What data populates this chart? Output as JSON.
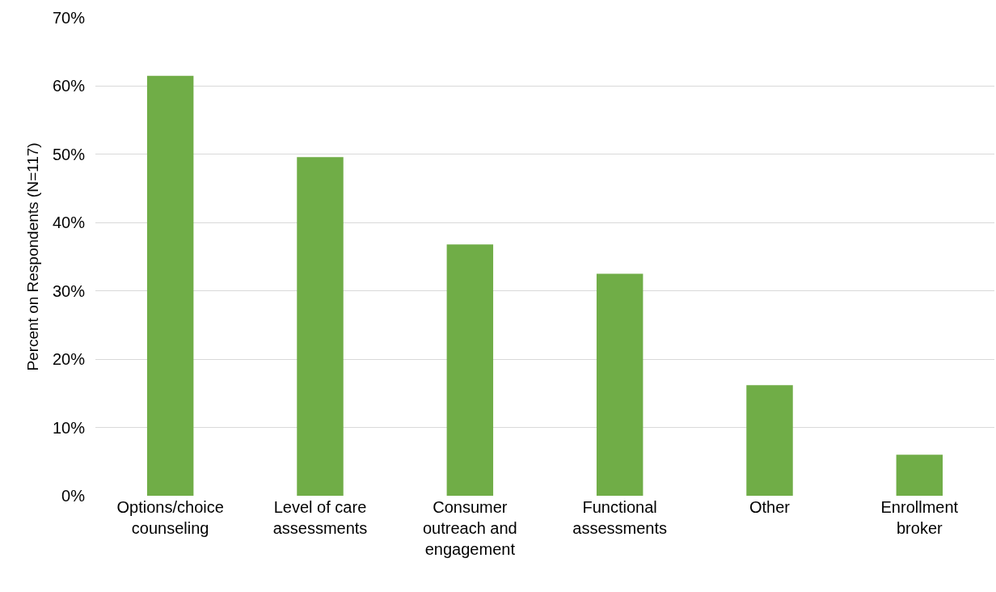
{
  "chart_data": {
    "type": "bar",
    "ylabel": "Percent on Respondents (N=117)",
    "categories": [
      "Options/choice counseling",
      "Level of care assessments",
      "Consumer outreach and engagement",
      "Functional assessments",
      "Other",
      "Enrollment broker"
    ],
    "values": [
      61.5,
      49.6,
      36.8,
      32.5,
      16.2,
      6.0
    ],
    "color": "#70ad47",
    "ylim": [
      0,
      70
    ],
    "yticks": [
      {
        "value": 0,
        "label": "0%"
      },
      {
        "value": 10,
        "label": "10%"
      },
      {
        "value": 20,
        "label": "20%"
      },
      {
        "value": 30,
        "label": "30%"
      },
      {
        "value": 40,
        "label": "40%"
      },
      {
        "value": 50,
        "label": "50%"
      },
      {
        "value": 60,
        "label": "60%"
      },
      {
        "value": 70,
        "label": "70%"
      }
    ],
    "grid": "y"
  }
}
